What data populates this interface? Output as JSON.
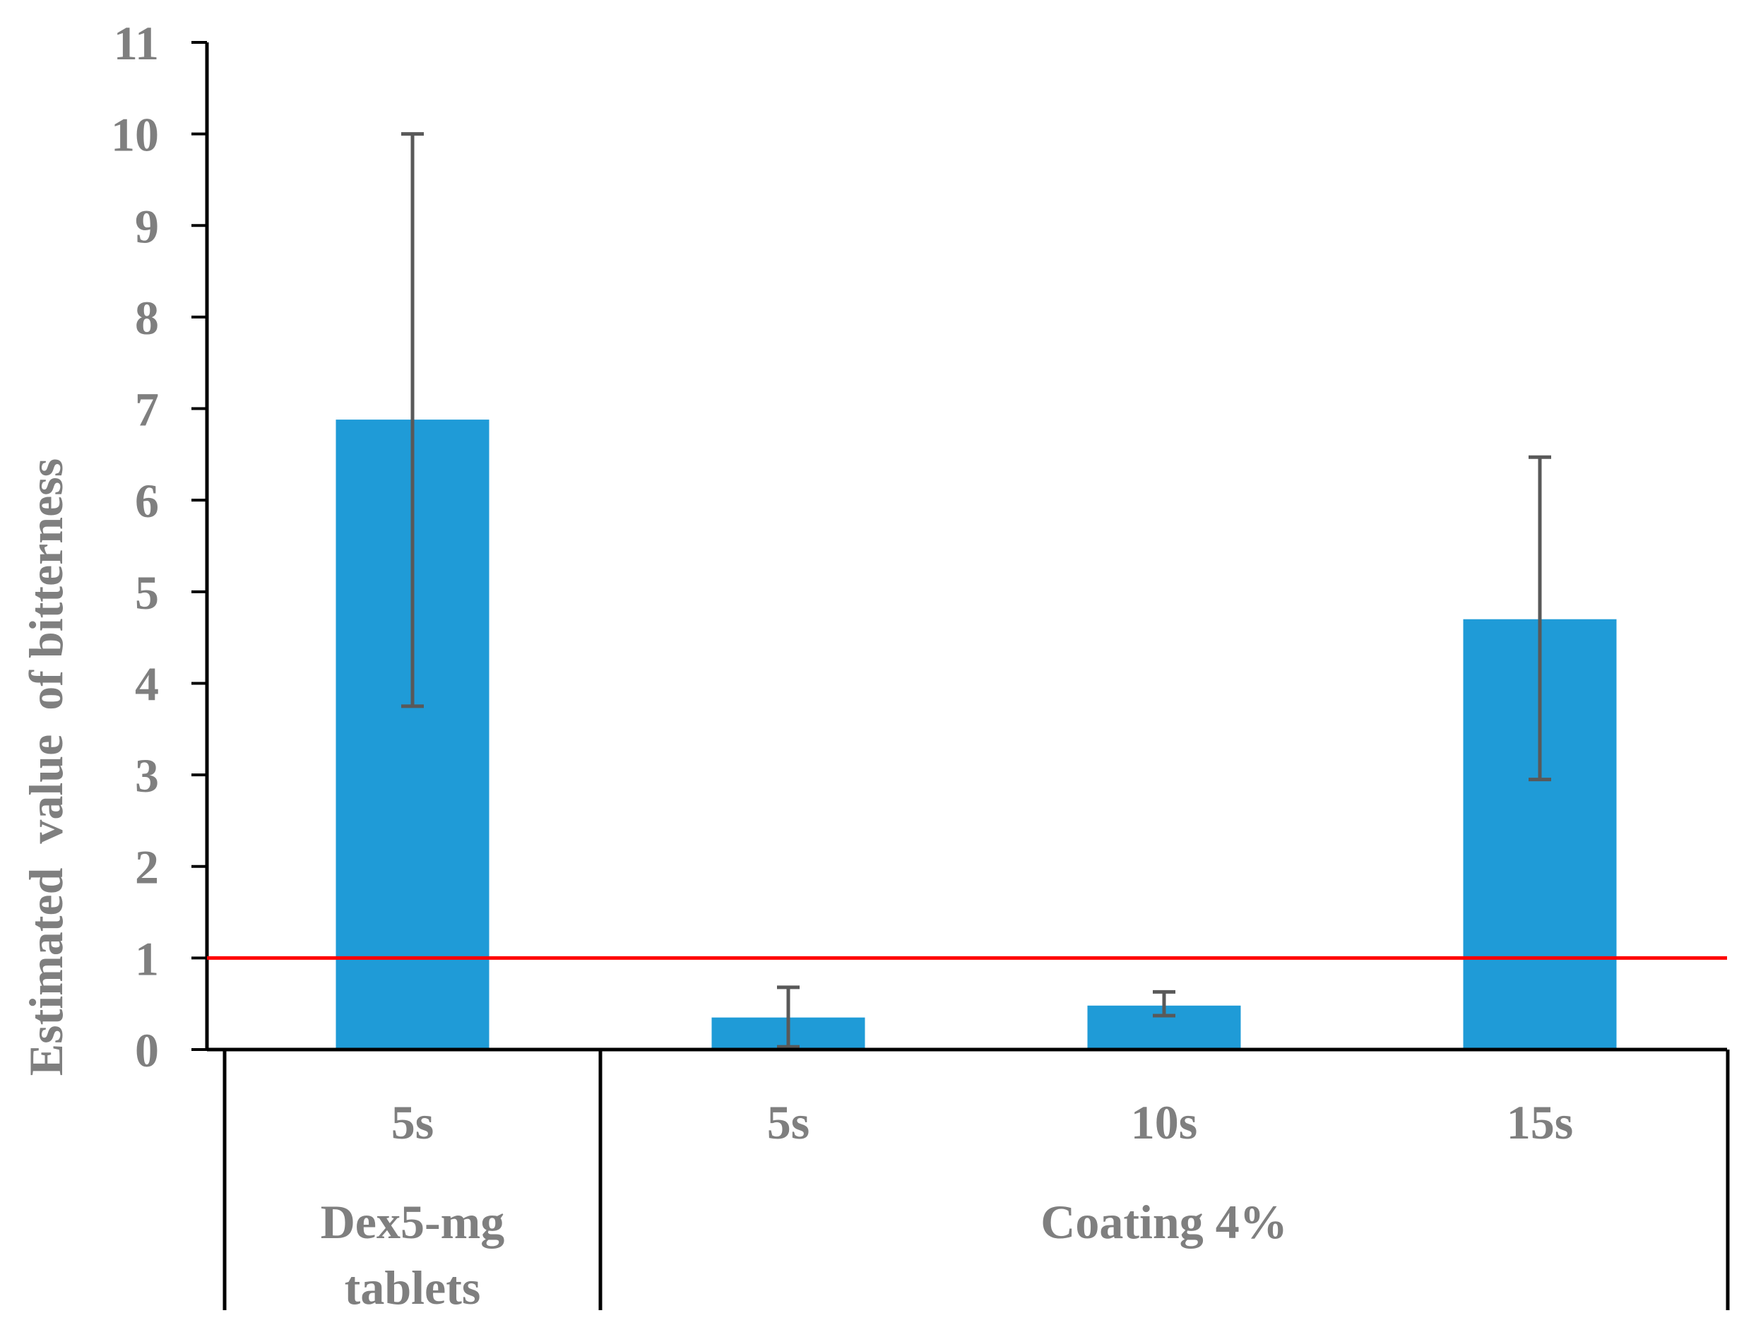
{
  "chart_data": {
    "type": "bar",
    "title": "",
    "xlabel": "",
    "ylabel": "Estimated  value  of bitterness",
    "ylim": [
      0,
      11
    ],
    "yticks": [
      0,
      1,
      2,
      3,
      4,
      5,
      6,
      7,
      8,
      9,
      10,
      11
    ],
    "categories": [
      "5s",
      "5s",
      "10s",
      "15s"
    ],
    "groups": [
      {
        "label": "Dex5-mg tablets",
        "label_lines": [
          "Dex5-mg",
          "tablets"
        ],
        "categories": [
          0
        ]
      },
      {
        "label": "Coating 4%",
        "label_lines": [
          "Coating 4%"
        ],
        "categories": [
          1,
          2,
          3
        ]
      }
    ],
    "series": [
      {
        "values": [
          6.88,
          0.35,
          0.48,
          4.7
        ],
        "error_low": [
          3.75,
          0.03,
          0.37,
          2.95
        ],
        "error_high": [
          10.0,
          0.68,
          0.63,
          6.47
        ],
        "color": "#1f9bd7"
      }
    ],
    "reference_line": {
      "y": 1,
      "color": "#ff0000"
    },
    "error_bar_color": "#595959",
    "axis_color": "#000000",
    "label_color": "#7f7f7f",
    "grid": false,
    "legend": "none"
  }
}
